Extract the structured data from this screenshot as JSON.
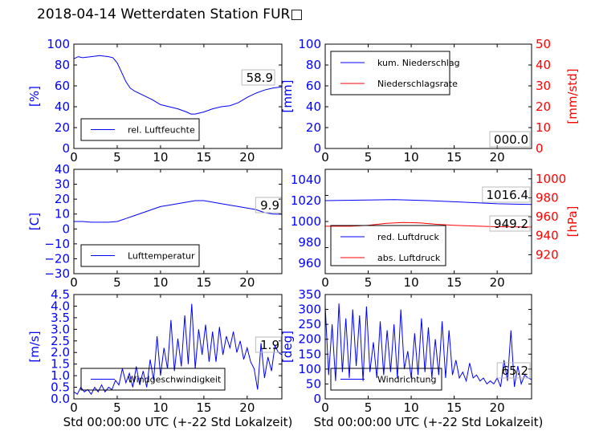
{
  "page": {
    "title": "2018-04-14 Wetterdaten Station FUR□"
  },
  "colors": {
    "left_axis": "#0000ff",
    "right_axis": "#ff0000",
    "frame": "#000000"
  },
  "chart_data": [
    {
      "id": "humidity",
      "type": "line",
      "x_range": [
        0,
        24
      ],
      "ylim": [
        0,
        100
      ],
      "xticks": [
        "0",
        "5",
        "10",
        "15",
        "20"
      ],
      "yticks": [
        "0",
        "20",
        "40",
        "60",
        "80",
        "100"
      ],
      "ylabel": "[%]",
      "value_label": "58.9",
      "legend": [
        "rel. Luftfeuchte"
      ],
      "series": [
        {
          "name": "rel. Luftfeuchte",
          "color": "#0000ff",
          "x": [
            0,
            0.5,
            1,
            2,
            3,
            4,
            4.5,
            5,
            5.5,
            6,
            6.5,
            7,
            8,
            9,
            10,
            11,
            12,
            13,
            13.5,
            14,
            15,
            16,
            17,
            18,
            19,
            20,
            21,
            22,
            23,
            24
          ],
          "y": [
            86,
            88,
            87,
            88,
            89,
            88,
            87,
            82,
            73,
            64,
            58,
            55,
            51,
            47,
            42,
            40,
            38,
            35,
            33,
            33,
            35,
            38,
            40,
            41,
            44,
            49,
            53,
            56,
            58,
            59
          ]
        }
      ]
    },
    {
      "id": "precipitation",
      "type": "line",
      "x_range": [
        0,
        24
      ],
      "ylim": [
        0,
        100
      ],
      "y2lim": [
        0,
        50
      ],
      "xticks": [
        "0",
        "5",
        "10",
        "15",
        "20"
      ],
      "yticks": [
        "0",
        "20",
        "40",
        "60",
        "80",
        "100"
      ],
      "y2ticks": [
        "0",
        "10",
        "20",
        "30",
        "40",
        "50"
      ],
      "ylabel": "[mm]",
      "y2label": "[mm/std]",
      "value_label": "000.0",
      "legend": [
        "kum. Niederschlag",
        "Niederschlagsrate"
      ],
      "series": [
        {
          "name": "kum. Niederschlag",
          "color": "#0000ff",
          "axis": "left",
          "x": [
            0,
            24
          ],
          "y": [
            0,
            0
          ]
        },
        {
          "name": "Niederschlagsrate",
          "color": "#ff0000",
          "axis": "right",
          "x": [
            0,
            24
          ],
          "y": [
            0,
            0
          ]
        }
      ]
    },
    {
      "id": "temperature",
      "type": "line",
      "x_range": [
        0,
        24
      ],
      "ylim": [
        -30,
        40
      ],
      "xticks": [
        "0",
        "5",
        "10",
        "15",
        "20"
      ],
      "yticks": [
        "−30",
        "−20",
        "−10",
        "0",
        "10",
        "20",
        "30",
        "40"
      ],
      "ylabel": "[C]",
      "value_label": "9.9",
      "legend": [
        "Lufttemperatur"
      ],
      "series": [
        {
          "name": "Lufttemperatur",
          "color": "#0000ff",
          "x": [
            0,
            1,
            2,
            3,
            4,
            5,
            6,
            7,
            8,
            9,
            10,
            11,
            12,
            13,
            14,
            15,
            16,
            17,
            18,
            19,
            20,
            21,
            22,
            23,
            24
          ],
          "y": [
            5,
            5,
            4.5,
            4.5,
            4.5,
            5,
            7,
            9,
            11,
            13,
            15,
            16,
            17,
            18,
            19,
            19,
            18,
            17,
            16,
            15,
            14,
            13,
            11,
            10,
            10
          ]
        }
      ]
    },
    {
      "id": "pressure",
      "type": "line",
      "x_range": [
        0,
        24
      ],
      "ylim": [
        950,
        1050
      ],
      "y2lim": [
        900,
        1010
      ],
      "xticks": [
        "0",
        "5",
        "10",
        "15",
        "20"
      ],
      "yticks": [
        "960",
        "980",
        "1000",
        "1020",
        "1040"
      ],
      "y2ticks": [
        "920",
        "940",
        "960",
        "980",
        "1000"
      ],
      "ylabel": "",
      "y2label": "[hPa]",
      "value_label": "1016.4",
      "value_label_2": "949.2",
      "legend": [
        "red. Luftdruck",
        "abs. Luftdruck"
      ],
      "series": [
        {
          "name": "red. Luftdruck",
          "color": "#0000ff",
          "axis": "left",
          "x": [
            0,
            4,
            8,
            12,
            16,
            20,
            24
          ],
          "y": [
            1020,
            1020.5,
            1021,
            1020,
            1018.5,
            1017,
            1016.4
          ]
        },
        {
          "name": "abs. Luftdruck",
          "color": "#ff0000",
          "axis": "right",
          "x": [
            0,
            3,
            5,
            7,
            9,
            11,
            13,
            15,
            18,
            20,
            24
          ],
          "y": [
            950,
            950,
            951,
            953,
            954,
            953.5,
            952,
            951,
            950,
            949.5,
            949.2
          ]
        }
      ]
    },
    {
      "id": "windspeed",
      "type": "line",
      "x_range": [
        0,
        24
      ],
      "ylim": [
        0,
        4.5
      ],
      "xticks": [
        "0",
        "5",
        "10",
        "15",
        "20"
      ],
      "yticks": [
        "0.0",
        "0.5",
        "1.0",
        "1.5",
        "2.0",
        "2.5",
        "3.0",
        "3.5",
        "4.0",
        "4.5"
      ],
      "ylabel": "[m/s]",
      "xlabel": "Std 00:00:00 UTC (+-22 Std Lokalzeit)",
      "value_label": "1.9",
      "legend": [
        "Windgeschwindigkeit"
      ],
      "series": [
        {
          "name": "Windgeschwindigkeit",
          "color": "#0000ff",
          "x": [
            0,
            0.4,
            0.8,
            1.2,
            1.6,
            2,
            2.4,
            2.8,
            3.2,
            3.6,
            4,
            4.4,
            4.8,
            5.2,
            5.6,
            6,
            6.4,
            6.8,
            7.2,
            7.6,
            8,
            8.4,
            8.8,
            9.2,
            9.6,
            10,
            10.4,
            10.8,
            11.2,
            11.6,
            12,
            12.4,
            12.8,
            13.2,
            13.6,
            14,
            14.4,
            14.8,
            15.2,
            15.6,
            16,
            16.4,
            16.8,
            17.2,
            17.6,
            18,
            18.4,
            18.8,
            19.2,
            19.6,
            20,
            20.4,
            20.8,
            21.2,
            21.6,
            22,
            22.4,
            22.8,
            23.2,
            23.6,
            24
          ],
          "y": [
            0.3,
            0.2,
            0.5,
            0.3,
            0.4,
            0.2,
            0.5,
            0.3,
            0.6,
            0.3,
            0.5,
            0.4,
            0.8,
            0.6,
            1.3,
            0.7,
            1.1,
            0.5,
            1.4,
            0.6,
            1.2,
            0.5,
            1.7,
            0.8,
            2.7,
            1.0,
            2.2,
            1.3,
            3.4,
            1.2,
            2.6,
            1.4,
            3.6,
            1.5,
            4.1,
            1.3,
            3.0,
            1.9,
            3.2,
            1.6,
            2.9,
            1.6,
            3.1,
            1.9,
            2.7,
            2.2,
            2.9,
            2.0,
            2.5,
            1.7,
            2.2,
            1.6,
            1.3,
            0.4,
            2.4,
            0.9,
            1.8,
            1.2,
            2.3,
            2.0,
            1.9
          ]
        }
      ]
    },
    {
      "id": "winddirection",
      "type": "line",
      "x_range": [
        0,
        24
      ],
      "ylim": [
        0,
        350
      ],
      "xticks": [
        "0",
        "5",
        "10",
        "15",
        "20"
      ],
      "yticks": [
        "0",
        "50",
        "100",
        "150",
        "200",
        "250",
        "300",
        "350"
      ],
      "ylabel": "[deg]",
      "xlabel": "Std 00:00:00 UTC (+-22 Std Lokalzeit)",
      "value_label": "65.2",
      "legend": [
        "Windrichtung"
      ],
      "series": [
        {
          "name": "Windrichtung",
          "color": "#0000ff",
          "x": [
            0,
            0.4,
            0.8,
            1.2,
            1.6,
            2,
            2.4,
            2.8,
            3.2,
            3.6,
            4,
            4.4,
            4.8,
            5.2,
            5.6,
            6,
            6.4,
            6.8,
            7.2,
            7.6,
            8,
            8.4,
            8.8,
            9.2,
            9.6,
            10,
            10.4,
            10.8,
            11.2,
            11.6,
            12,
            12.4,
            12.8,
            13.2,
            13.6,
            14,
            14.4,
            14.8,
            15.2,
            15.6,
            16,
            16.4,
            16.8,
            17.2,
            17.6,
            18,
            18.4,
            18.8,
            19.2,
            19.6,
            20,
            20.4,
            20.8,
            21.2,
            21.6,
            22,
            22.4,
            22.8,
            23.2,
            23.6,
            24
          ],
          "y": [
            310,
            80,
            250,
            60,
            320,
            90,
            270,
            70,
            300,
            110,
            280,
            60,
            310,
            90,
            190,
            70,
            260,
            80,
            230,
            90,
            250,
            70,
            300,
            100,
            160,
            70,
            220,
            80,
            270,
            90,
            240,
            70,
            200,
            80,
            260,
            70,
            230,
            80,
            130,
            70,
            90,
            60,
            120,
            70,
            80,
            60,
            70,
            50,
            60,
            50,
            70,
            40,
            130,
            60,
            230,
            40,
            110,
            50,
            80,
            70,
            65
          ]
        }
      ]
    }
  ]
}
